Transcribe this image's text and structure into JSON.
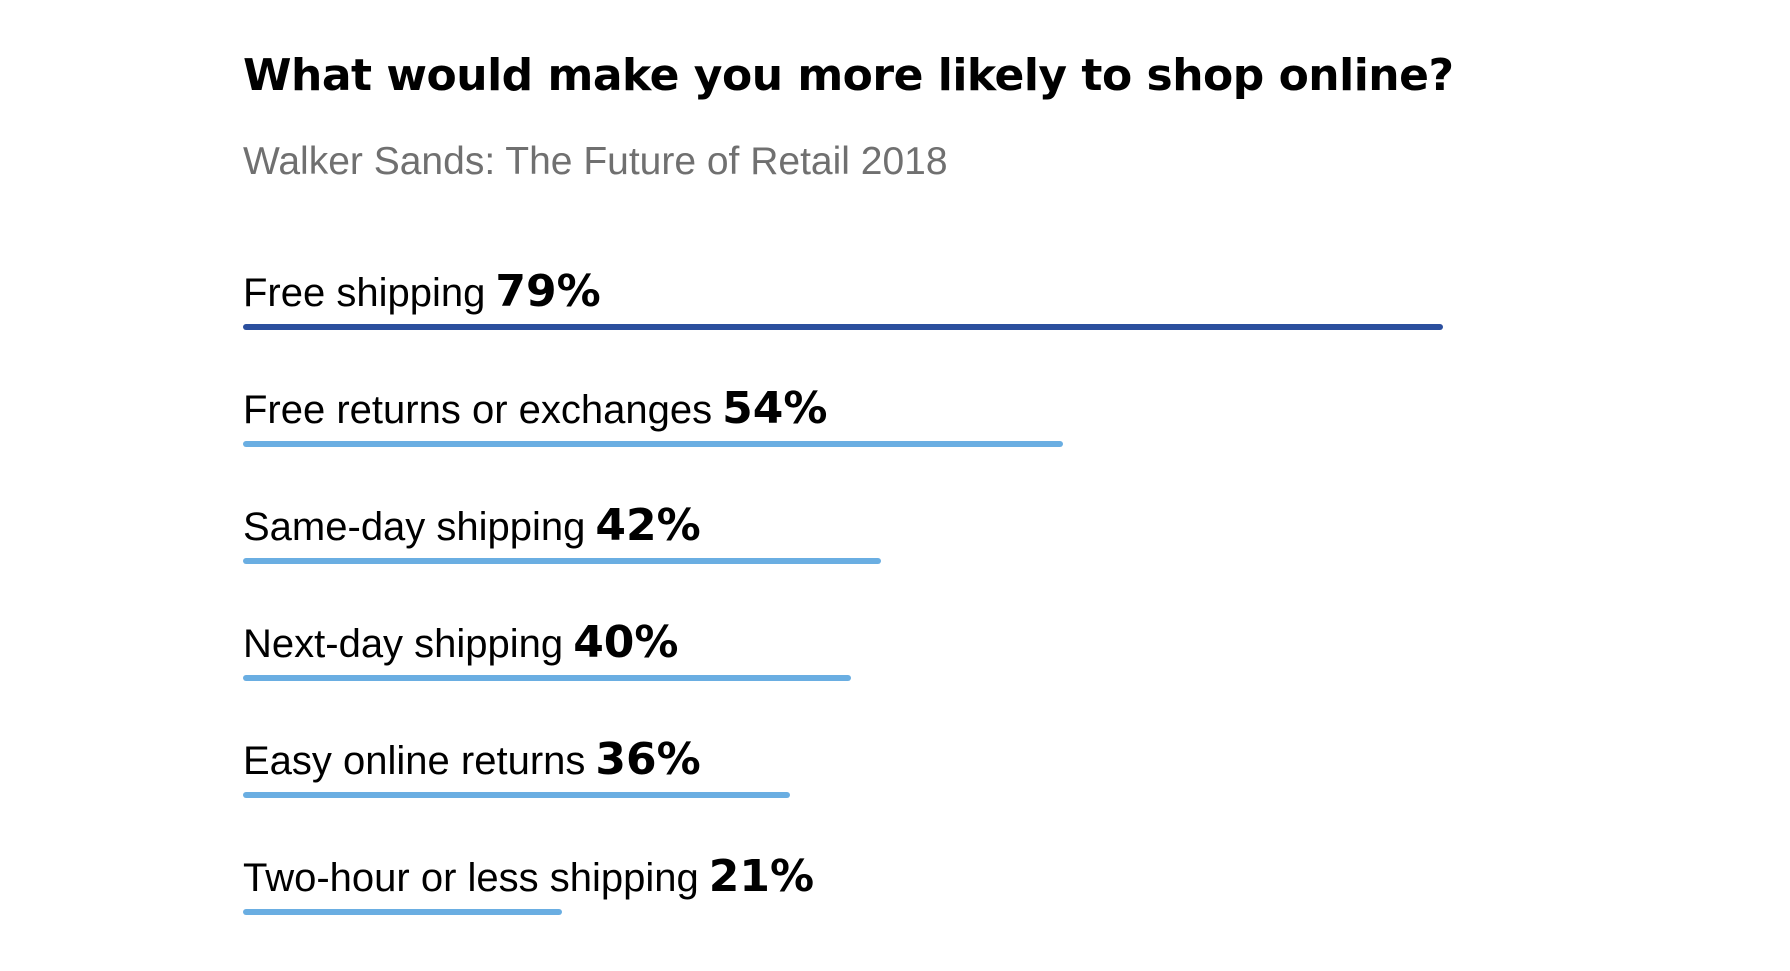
{
  "chart_data": {
    "type": "bar",
    "orientation": "horizontal",
    "title": "What would make you more likely to shop online?",
    "subtitle": "Walker Sands: The Future of Retail 2018",
    "categories": [
      "Free shipping",
      "Free returns or exchanges",
      "Same-day shipping",
      "Next-day shipping",
      "Easy online returns",
      "Two-hour or less shipping"
    ],
    "values": [
      79,
      54,
      42,
      40,
      36,
      21
    ],
    "value_labels": [
      "79%",
      "54%",
      "42%",
      "40%",
      "36%",
      "21%"
    ],
    "unit": "%",
    "xlim": [
      0,
      79
    ],
    "highlight_index": 0,
    "colors": {
      "highlight": "#2B4F9E",
      "default": "#6AAEE2"
    },
    "grid": false,
    "legend": "none"
  }
}
